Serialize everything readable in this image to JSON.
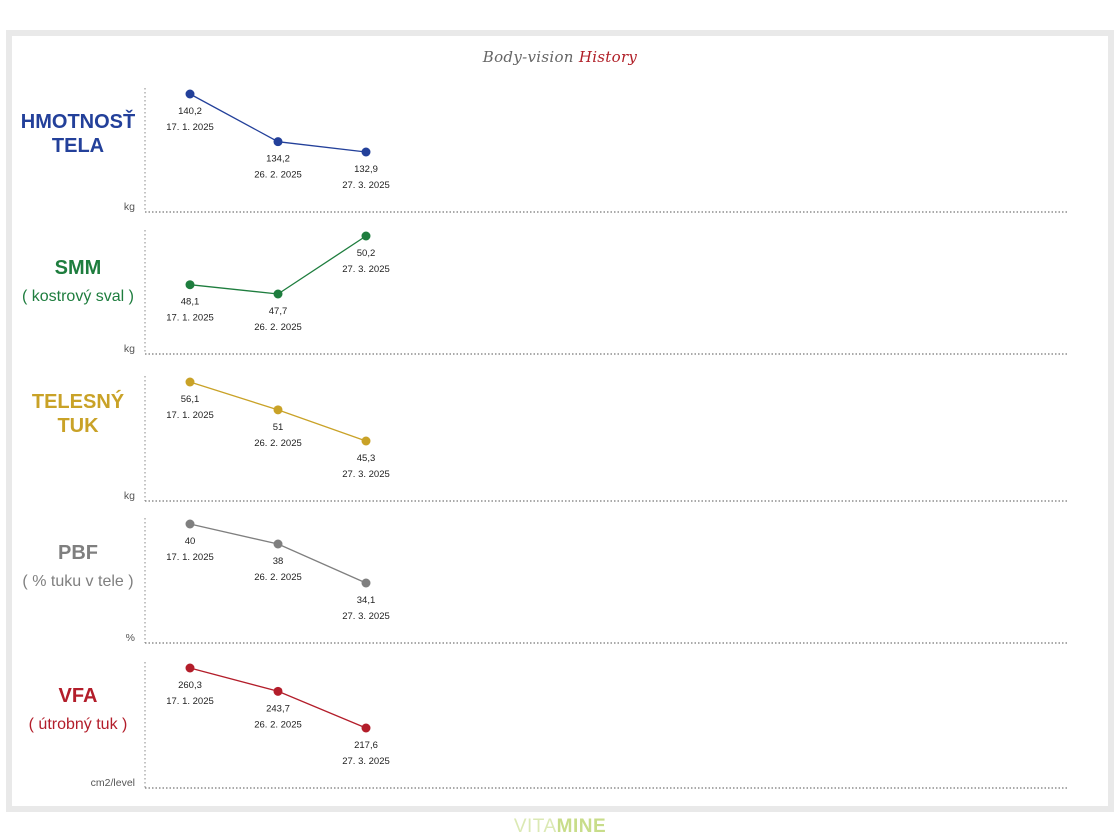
{
  "title": {
    "part1": "Body-vision",
    "part2": "History"
  },
  "brand": {
    "part1": "VITA",
    "part2": "MINE"
  },
  "chart_data": [
    {
      "type": "line",
      "label": "HMOTNOSŤ TELA",
      "label_lines": [
        "HMOTNOSŤ",
        "TELA"
      ],
      "sublabel": "",
      "unit": "kg",
      "color": "#23409a",
      "x": [
        "17. 1. 2025",
        "26. 2. 2025",
        "27. 3. 2025"
      ],
      "values": [
        140.2,
        134.2,
        132.9
      ],
      "value_labels": [
        "140,2",
        "134,2",
        "132,9"
      ]
    },
    {
      "type": "line",
      "label": "SMM",
      "label_lines": [
        "SMM"
      ],
      "sublabel": "( kostrový sval )",
      "unit": "kg",
      "color": "#1e7d3e",
      "x": [
        "17. 1. 2025",
        "26. 2. 2025",
        "27. 3. 2025"
      ],
      "values": [
        48.1,
        47.7,
        50.2
      ],
      "value_labels": [
        "48,1",
        "47,7",
        "50,2"
      ]
    },
    {
      "type": "line",
      "label": "TELESNÝ TUK",
      "label_lines": [
        "TELESNÝ",
        "TUK"
      ],
      "sublabel": "",
      "unit": "kg",
      "color": "#c9a227",
      "x": [
        "17. 1. 2025",
        "26. 2. 2025",
        "27. 3. 2025"
      ],
      "values": [
        56.1,
        51,
        45.3
      ],
      "value_labels": [
        "56,1",
        "51",
        "45,3"
      ]
    },
    {
      "type": "line",
      "label": "PBF",
      "label_lines": [
        "PBF"
      ],
      "sublabel": "( % tuku v tele )",
      "unit": "%",
      "color": "#7f7f7f",
      "x": [
        "17. 1. 2025",
        "26. 2. 2025",
        "27. 3. 2025"
      ],
      "values": [
        40,
        38,
        34.1
      ],
      "value_labels": [
        "40",
        "38",
        "34,1"
      ]
    },
    {
      "type": "line",
      "label": "VFA",
      "label_lines": [
        "VFA"
      ],
      "sublabel": "( útrobný tuk )",
      "unit": "cm2/level",
      "color": "#b31d2a",
      "x": [
        "17. 1. 2025",
        "26. 2. 2025",
        "27. 3. 2025"
      ],
      "values": [
        260.3,
        243.7,
        217.6
      ],
      "value_labels": [
        "260,3",
        "243,7",
        "217,6"
      ]
    }
  ]
}
